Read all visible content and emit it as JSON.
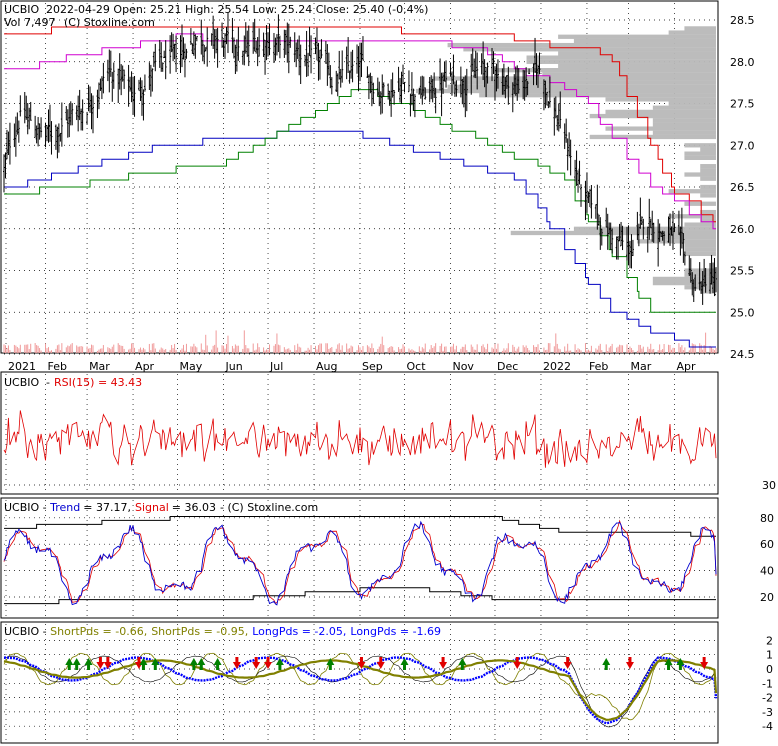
{
  "colors": {
    "price": "#000000",
    "stop_red": "#e00000",
    "stop_magenta": "#d000d0",
    "stop_blue": "#0000c0",
    "stop_green": "#008000",
    "profile": "#b8b8b8",
    "volume": "#f09a9a",
    "rsi": "#e00000",
    "trend": "#0000d0",
    "signal": "#e00000",
    "band": "#000000",
    "short_pds": "#808000",
    "long_pds": "#0000ff",
    "grid": "#000000",
    "arrow_up": "#008000",
    "arrow_down": "#e00000"
  },
  "panels": {
    "price": {
      "ticker": "UCBIO",
      "header": "2022-04-29 Open: 25.21  High: 25.54  Low: 25.24  Close: 25.40 (-0.4%)",
      "vol": "Vol 7,497",
      "copyright": "(C) Stoxline.com"
    },
    "rsi": {
      "ticker": "UCBIO",
      "label": "RSI(15) = 43.43"
    },
    "trend": {
      "ticker": "UCBIO",
      "trend_label": "Trend",
      "trend_value": "= 37.17,",
      "signal_label": "Signal",
      "signal_value": "= 36.03",
      "copyright": "- (C) Stoxline.com"
    },
    "pds": {
      "ticker": "UCBIO",
      "s1": "ShortPds = -0.66,",
      "s2": "ShortPds = -0.95,",
      "l1": "LongPds = -2.05,",
      "l2": "LongPds = -1.69"
    }
  },
  "chart_data": [
    {
      "type": "candlestick",
      "title": "UCBIO  2022-04-29 Open: 25.21  High: 25.54  Low: 25.24  Close: 25.40 (-0.4%)",
      "x_tick_labels": [
        "2021",
        "Feb",
        "Mar",
        "Apr",
        "May",
        "Jun",
        "Jul",
        "Aug",
        "Sep",
        "Oct",
        "Nov",
        "Dec",
        "2022",
        "Feb",
        "Mar",
        "Apr"
      ],
      "y_tick_labels": [
        "28.5",
        "28.0",
        "27.5",
        "27.0",
        "26.5",
        "26.0",
        "25.5",
        "25.0",
        "24.5"
      ],
      "ylim": [
        24.5,
        28.5
      ],
      "last_bar": {
        "date": "2022-04-29",
        "open": 25.21,
        "high": 25.54,
        "low": 25.24,
        "close": 25.4,
        "change_pct": -0.4,
        "volume": 7497
      },
      "close_keypoints": [
        [
          "2021-01-04",
          26.7
        ],
        [
          "2021-01-15",
          27.4
        ],
        [
          "2021-02-01",
          27.1
        ],
        [
          "2021-02-15",
          27.3
        ],
        [
          "2021-03-01",
          27.5
        ],
        [
          "2021-03-15",
          27.9
        ],
        [
          "2021-04-01",
          27.6
        ],
        [
          "2021-04-15",
          27.9
        ],
        [
          "2021-05-01",
          28.0
        ],
        [
          "2021-05-15",
          28.35
        ],
        [
          "2021-06-01",
          28.2
        ],
        [
          "2021-06-15",
          28.1
        ],
        [
          "2021-07-01",
          28.3
        ],
        [
          "2021-07-15",
          28.15
        ],
        [
          "2021-08-01",
          28.0
        ],
        [
          "2021-08-15",
          27.8
        ],
        [
          "2021-09-01",
          27.9
        ],
        [
          "2021-09-15",
          27.7
        ],
        [
          "2021-10-01",
          27.75
        ],
        [
          "2021-10-15",
          27.6
        ],
        [
          "2021-11-01",
          27.8
        ],
        [
          "2021-11-15",
          27.85
        ],
        [
          "2021-12-01",
          27.9
        ],
        [
          "2021-12-15",
          27.7
        ],
        [
          "2022-01-01",
          27.9
        ],
        [
          "2022-01-15",
          27.2
        ],
        [
          "2022-02-01",
          26.3
        ],
        [
          "2022-02-15",
          26.0
        ],
        [
          "2022-03-01",
          25.7
        ],
        [
          "2022-03-15",
          26.1
        ],
        [
          "2022-04-01",
          25.9
        ],
        [
          "2022-04-15",
          25.3
        ],
        [
          "2022-04-29",
          25.4
        ]
      ],
      "stop_lines": [
        {
          "color": "red",
          "points": [
            [
              "2021-01-04",
              28.35
            ],
            [
              "2021-05-01",
              28.45
            ],
            [
              "2021-11-15",
              28.35
            ],
            [
              "2022-02-15",
              28.1
            ],
            [
              "2022-04-01",
              26.4
            ],
            [
              "2022-04-29",
              26.1
            ]
          ]
        },
        {
          "color": "magenta",
          "points": [
            [
              "2021-01-04",
              27.9
            ],
            [
              "2021-05-01",
              28.3
            ],
            [
              "2021-11-15",
              28.2
            ],
            [
              "2022-02-01",
              27.5
            ],
            [
              "2022-03-15",
              26.5
            ],
            [
              "2022-04-29",
              26.0
            ]
          ]
        },
        {
          "color": "blue",
          "points": [
            [
              "2021-01-04",
              26.5
            ],
            [
              "2021-04-15",
              27.0
            ],
            [
              "2021-08-15",
              27.2
            ],
            [
              "2021-12-15",
              26.6
            ],
            [
              "2022-02-15",
              25.0
            ],
            [
              "2022-04-15",
              24.55
            ]
          ]
        },
        {
          "color": "green",
          "points": [
            [
              "2021-01-04",
              26.4
            ],
            [
              "2021-06-01",
              26.8
            ],
            [
              "2021-09-01",
              27.7
            ],
            [
              "2022-01-15",
              26.6
            ],
            [
              "2022-03-15",
              25.0
            ]
          ]
        }
      ]
    },
    {
      "type": "line",
      "title": "UCBIO - RSI(15) = 43.43",
      "y_tick_labels": [
        "30"
      ],
      "ylim": [
        25,
        80
      ],
      "series": [
        {
          "name": "RSI(15)",
          "last_value": 43.43
        }
      ]
    },
    {
      "type": "line",
      "title": "UCBIO - Trend = 37.17, Signal = 36.03 - (C) Stoxline.com",
      "y_tick_labels": [
        "80",
        "60",
        "40",
        "20"
      ],
      "ylim": [
        10,
        90
      ],
      "series": [
        {
          "name": "Trend",
          "last_value": 37.17
        },
        {
          "name": "Signal",
          "last_value": 36.03
        }
      ]
    },
    {
      "type": "line",
      "title": "UCBIO - ShortPds = -0.66, ShortPds = -0.95, LongPds = -2.05, LongPds = -1.69",
      "y_tick_labels": [
        "2",
        "1",
        "0",
        "-1",
        "-2",
        "-3",
        "-4"
      ],
      "ylim": [
        -4.5,
        2.5
      ],
      "series": [
        {
          "name": "ShortPds",
          "last_value": -0.66
        },
        {
          "name": "ShortPds",
          "last_value": -0.95
        },
        {
          "name": "LongPds",
          "last_value": -2.05
        },
        {
          "name": "LongPds",
          "last_value": -1.69
        }
      ]
    }
  ]
}
